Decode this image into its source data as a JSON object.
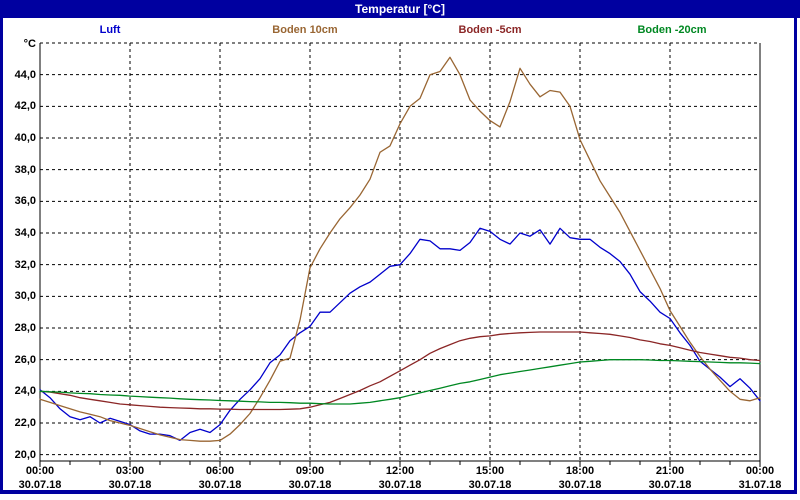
{
  "window": {
    "title": "Temperatur [°C]"
  },
  "colors": {
    "title_bar": "#0000a0",
    "window_border": "#0000a0",
    "plot_background": "#ffffff",
    "grid": "#000000",
    "axis_text": "#000000"
  },
  "legend": {
    "items": [
      {
        "label": "Luft",
        "color": "#0000cc"
      },
      {
        "label": "Boden 10cm",
        "color": "#996633"
      },
      {
        "label": "Boden -5cm",
        "color": "#8b2626"
      },
      {
        "label": "Boden -20cm",
        "color": "#008822"
      }
    ]
  },
  "chart_data": {
    "type": "line",
    "title": "Temperatur [°C]",
    "ylabel": "°C",
    "grid": {
      "style": "dashed",
      "color": "#000000"
    },
    "y_axis": {
      "unit": "°C",
      "range": [
        19.6,
        46.0
      ],
      "gridline_step": 2.0,
      "tick_values": [
        44,
        42,
        40,
        38,
        36,
        34,
        32,
        30,
        28,
        26,
        24,
        22,
        20
      ],
      "tick_labels": [
        "44,0",
        "42,0",
        "40,0",
        "38,0",
        "36,0",
        "34,0",
        "32,0",
        "30,0",
        "28,0",
        "26,0",
        "24,0",
        "22,0",
        "20,0"
      ]
    },
    "x_axis": {
      "range_hours": [
        0,
        24
      ],
      "minor_tick_every_hours": 1,
      "major_tick_every_hours": 3,
      "tick_hours": [
        0,
        3,
        6,
        9,
        12,
        15,
        18,
        21,
        24
      ],
      "tick_times": [
        "00:00",
        "03:00",
        "06:00",
        "09:00",
        "12:00",
        "15:00",
        "18:00",
        "21:00",
        "00:00"
      ],
      "tick_dates": [
        "30.07.18",
        "30.07.18",
        "30.07.18",
        "30.07.18",
        "30.07.18",
        "30.07.18",
        "30.07.18",
        "30.07.18",
        "31.07.18"
      ]
    },
    "x_step_minutes": 20,
    "series": [
      {
        "name": "Luft",
        "color": "#0000cc",
        "values": [
          24.1,
          23.6,
          22.9,
          22.4,
          22.2,
          22.4,
          22.0,
          22.3,
          22.1,
          21.9,
          21.5,
          21.3,
          21.3,
          21.2,
          20.9,
          21.4,
          21.6,
          21.4,
          21.9,
          22.8,
          23.5,
          24.1,
          24.8,
          25.8,
          26.3,
          27.2,
          27.7,
          28.1,
          29.0,
          29.0,
          29.6,
          30.2,
          30.6,
          30.9,
          31.4,
          31.9,
          32.0,
          32.7,
          33.6,
          33.5,
          33.0,
          33.0,
          32.9,
          33.4,
          34.3,
          34.1,
          33.6,
          33.3,
          34.0,
          33.8,
          34.2,
          33.3,
          34.3,
          33.7,
          33.6,
          33.6,
          33.1,
          32.7,
          32.2,
          31.4,
          30.3,
          29.7,
          29.0,
          28.6,
          27.7,
          26.9,
          25.9,
          25.4,
          24.9,
          24.3,
          24.8,
          24.2,
          23.4
        ]
      },
      {
        "name": "Boden 10cm",
        "color": "#996633",
        "values": [
          23.5,
          23.3,
          23.1,
          22.9,
          22.7,
          22.55,
          22.4,
          22.15,
          22.0,
          21.85,
          21.65,
          21.45,
          21.25,
          21.1,
          20.95,
          20.9,
          20.85,
          20.85,
          20.9,
          21.3,
          21.9,
          22.6,
          23.6,
          24.7,
          25.9,
          26.1,
          28.5,
          31.8,
          33.0,
          34.0,
          34.9,
          35.6,
          36.4,
          37.4,
          39.1,
          39.5,
          40.9,
          42.0,
          42.5,
          44.0,
          44.2,
          45.1,
          44.0,
          42.4,
          41.7,
          41.1,
          40.7,
          42.3,
          44.4,
          43.4,
          42.6,
          43.0,
          42.9,
          42.0,
          39.9,
          38.6,
          37.3,
          36.3,
          35.3,
          34.1,
          32.9,
          31.7,
          30.5,
          29.1,
          28.1,
          27.1,
          26.2,
          25.4,
          24.7,
          24.0,
          23.5,
          23.4,
          23.6
        ]
      },
      {
        "name": "Boden -5cm",
        "color": "#8b2626",
        "values": [
          24.0,
          23.95,
          23.85,
          23.75,
          23.6,
          23.5,
          23.4,
          23.3,
          23.2,
          23.15,
          23.1,
          23.05,
          23.0,
          22.97,
          22.95,
          22.93,
          22.9,
          22.9,
          22.88,
          22.87,
          22.85,
          22.85,
          22.85,
          22.85,
          22.85,
          22.87,
          22.9,
          23.0,
          23.15,
          23.3,
          23.55,
          23.8,
          24.05,
          24.35,
          24.6,
          24.95,
          25.3,
          25.65,
          26.0,
          26.4,
          26.7,
          26.95,
          27.2,
          27.35,
          27.45,
          27.5,
          27.6,
          27.65,
          27.7,
          27.72,
          27.75,
          27.75,
          27.75,
          27.75,
          27.75,
          27.7,
          27.65,
          27.6,
          27.5,
          27.4,
          27.25,
          27.15,
          27.0,
          26.9,
          26.75,
          26.6,
          26.45,
          26.35,
          26.25,
          26.15,
          26.1,
          26.0,
          25.95
        ]
      },
      {
        "name": "Boden -20cm",
        "color": "#008822",
        "values": [
          24.0,
          23.97,
          23.95,
          23.9,
          23.87,
          23.85,
          23.8,
          23.77,
          23.75,
          23.7,
          23.67,
          23.63,
          23.6,
          23.57,
          23.53,
          23.5,
          23.47,
          23.45,
          23.42,
          23.4,
          23.38,
          23.35,
          23.33,
          23.3,
          23.3,
          23.28,
          23.25,
          23.25,
          23.22,
          23.2,
          23.2,
          23.2,
          23.25,
          23.3,
          23.4,
          23.5,
          23.6,
          23.75,
          23.9,
          24.05,
          24.2,
          24.35,
          24.5,
          24.6,
          24.75,
          24.9,
          25.05,
          25.15,
          25.25,
          25.35,
          25.45,
          25.55,
          25.65,
          25.75,
          25.85,
          25.9,
          25.95,
          26.0,
          26.0,
          26.0,
          26.0,
          25.98,
          25.95,
          25.95,
          25.92,
          25.9,
          25.88,
          25.85,
          25.83,
          25.8,
          25.8,
          25.78,
          25.75
        ]
      }
    ]
  }
}
